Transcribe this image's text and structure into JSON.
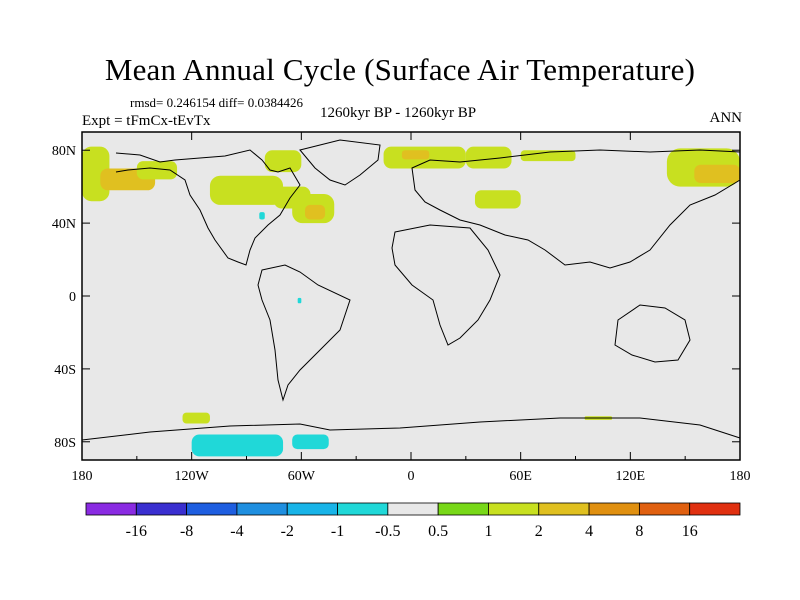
{
  "chart_data": {
    "type": "heatmap",
    "title": "Mean Annual Cycle (Surface Air Temperature)",
    "stats_line": "rmsd= 0.246154 diff= 0.0384426",
    "experiment": "Expt = tFmCx-tEvTx",
    "period": "1260kyr BP - 1260kyr BP",
    "season": "ANN",
    "xlim": [
      -180,
      180
    ],
    "ylim": [
      -90,
      90
    ],
    "x_ticks": [
      {
        "value": -180,
        "label": "180"
      },
      {
        "value": -120,
        "label": "120W"
      },
      {
        "value": -60,
        "label": "60W"
      },
      {
        "value": 0,
        "label": "0"
      },
      {
        "value": 60,
        "label": "60E"
      },
      {
        "value": 120,
        "label": "120E"
      },
      {
        "value": 180,
        "label": "180"
      }
    ],
    "y_ticks": [
      {
        "value": 80,
        "label": "80N"
      },
      {
        "value": 40,
        "label": "40N"
      },
      {
        "value": 0,
        "label": "0"
      },
      {
        "value": -40,
        "label": "40S"
      },
      {
        "value": -80,
        "label": "80S"
      }
    ],
    "colorbar": {
      "colors": [
        "#8a2be2",
        "#3a2fd0",
        "#1e5ee0",
        "#1f8fe0",
        "#18b4e8",
        "#20d8d8",
        "#e8e8e8",
        "#78d818",
        "#c8e020",
        "#e0c020",
        "#e09010",
        "#e06010",
        "#e03010"
      ],
      "labels": [
        "-16",
        "-8",
        "-4",
        "-2",
        "-1",
        "-0.5",
        "0.5",
        "1",
        "2",
        "4",
        "8",
        "16"
      ]
    },
    "anomaly_regions": [
      {
        "lon": [
          -180,
          -165
        ],
        "lat": [
          52,
          82
        ],
        "value": 1.5
      },
      {
        "lon": [
          -170,
          -140
        ],
        "lat": [
          58,
          70
        ],
        "value": 2.5
      },
      {
        "lon": [
          -150,
          -128
        ],
        "lat": [
          64,
          74
        ],
        "value": 1.2
      },
      {
        "lon": [
          -110,
          -70
        ],
        "lat": [
          50,
          66
        ],
        "value": 1.3
      },
      {
        "lon": [
          -75,
          -55
        ],
        "lat": [
          48,
          60
        ],
        "value": 1.2
      },
      {
        "lon": [
          -80,
          -60
        ],
        "lat": [
          68,
          80
        ],
        "value": 1.1
      },
      {
        "lon": [
          -65,
          -42
        ],
        "lat": [
          40,
          56
        ],
        "value": 1.5
      },
      {
        "lon": [
          -58,
          -47
        ],
        "lat": [
          42,
          50
        ],
        "value": 2.5
      },
      {
        "lon": [
          -15,
          30
        ],
        "lat": [
          70,
          82
        ],
        "value": 1.5
      },
      {
        "lon": [
          -5,
          10
        ],
        "lat": [
          75,
          80
        ],
        "value": 2.5
      },
      {
        "lon": [
          35,
          60
        ],
        "lat": [
          48,
          58
        ],
        "value": 1.5
      },
      {
        "lon": [
          30,
          55
        ],
        "lat": [
          70,
          82
        ],
        "value": 1.2
      },
      {
        "lon": [
          60,
          90
        ],
        "lat": [
          74,
          80
        ],
        "value": 1.1
      },
      {
        "lon": [
          140,
          180
        ],
        "lat": [
          60,
          81
        ],
        "value": 1.5
      },
      {
        "lon": [
          155,
          180
        ],
        "lat": [
          62,
          72
        ],
        "value": 2.5
      },
      {
        "lon": [
          -125,
          -110
        ],
        "lat": [
          -70,
          -64
        ],
        "value": 1.1
      },
      {
        "lon": [
          95,
          110
        ],
        "lat": [
          -68,
          -66
        ],
        "value": 1.1
      },
      {
        "lon": [
          -120,
          -70
        ],
        "lat": [
          -88,
          -76
        ],
        "value": -0.8
      },
      {
        "lon": [
          -65,
          -45
        ],
        "lat": [
          -84,
          -76
        ],
        "value": -0.8
      },
      {
        "lon": [
          -83,
          -80
        ],
        "lat": [
          42,
          46
        ],
        "value": -0.6
      },
      {
        "lon": [
          -62,
          -60
        ],
        "lat": [
          -4,
          -1
        ],
        "value": -0.6
      }
    ]
  }
}
